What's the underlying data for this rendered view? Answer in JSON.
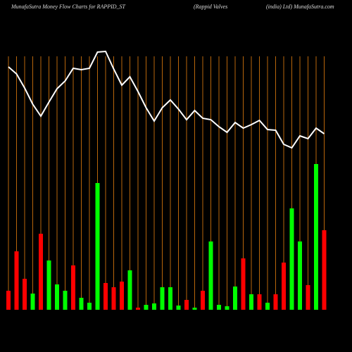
{
  "chart_data": {
    "type": "bar",
    "titles": [
      "MunafaSutra  Money Flow  Charts for RAPPID_ST",
      "(Rappid Valves",
      "(india) Ltd) MunafaSutra.com"
    ],
    "categories": [
      null,
      null,
      null,
      null,
      null,
      null,
      null,
      null,
      null,
      null,
      null,
      null,
      null,
      null,
      null,
      null,
      null,
      null,
      null,
      null,
      null,
      null,
      null,
      null,
      null,
      null,
      null,
      null,
      null,
      null,
      null,
      null,
      null,
      null,
      null,
      null,
      null,
      null,
      null,
      null
    ],
    "ylim": [
      0,
      370
    ],
    "bars": {
      "values": [
        27,
        83,
        44,
        23,
        108,
        70,
        36,
        27,
        63,
        17,
        10,
        180,
        38,
        32,
        40,
        56,
        3,
        7,
        9,
        32,
        32,
        6,
        14,
        3,
        27,
        97,
        7,
        5,
        33,
        73,
        22,
        22,
        10,
        22,
        67,
        144,
        97,
        35,
        207,
        113
      ],
      "colors": [
        "#ff0000",
        "#ff0000",
        "#ff0000",
        "#00ff00",
        "#ff0000",
        "#00ff00",
        "#00ff00",
        "#00ff00",
        "#ff0000",
        "#00ff00",
        "#00ff00",
        "#00ff00",
        "#ff0000",
        "#ff0000",
        "#ff0000",
        "#00ff00",
        "#ff0000",
        "#00ff00",
        "#00ff00",
        "#00ff00",
        "#00ff00",
        "#00ff00",
        "#ff0000",
        "#00ff00",
        "#ff0000",
        "#00ff00",
        "#00ff00",
        "#00ff00",
        "#00ff00",
        "#ff0000",
        "#00ff00",
        "#ff0000",
        "#00ff00",
        "#ff0000",
        "#ff0000",
        "#00ff00",
        "#00ff00",
        "#ff0000",
        "#00ff00",
        "#ff0000"
      ]
    },
    "line": {
      "color": "#ffffff",
      "values": [
        345,
        335,
        315,
        292,
        275,
        295,
        314,
        325,
        343,
        341,
        343,
        366,
        367,
        342,
        319,
        331,
        310,
        287,
        268,
        287,
        298,
        285,
        270,
        283,
        272,
        270,
        260,
        252,
        266,
        258,
        263,
        269,
        256,
        255,
        235,
        230,
        247,
        243,
        258,
        250
      ]
    },
    "gridline_color": "#b8660b"
  }
}
